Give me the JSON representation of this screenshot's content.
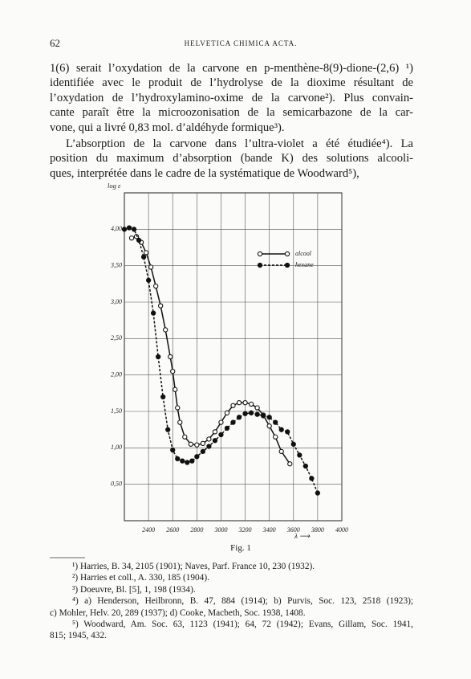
{
  "header": {
    "page_number": "62",
    "running_title": "HELVETICA CHIMICA ACTA."
  },
  "paragraphs": [
    {
      "indent": false,
      "lines": [
        "1(6) serait l’oxydation de la carvone en p-menthène-8(9)-dione-(2,6) ¹)",
        "identifiée avec le produit de l’hydrolyse de la dioxime résultant de",
        "l’oxydation de l’hydroxylamino-oxime de la carvone²). Plus convain-",
        "cante paraît être la microozonisation de la semicarbazone de la car-",
        "vone, qui a livré 0,83 mol. d’aldéhyde formique³)."
      ]
    },
    {
      "indent": true,
      "lines": [
        "L’absorption de la carvone dans l’ultra-violet a été étudiée⁴). La",
        "position du maximum d’absorption (bande K) des solutions alcooli-",
        "ques, interprétée dans le cadre de la systématique de Woodward⁵),"
      ]
    }
  ],
  "chart_data": {
    "type": "line",
    "y_label": "log ε",
    "x_label": "λ ⟶",
    "xlim": [
      2200,
      4000
    ],
    "xticks": [
      2400,
      2600,
      2800,
      3000,
      3200,
      3400,
      3600,
      3800,
      4000
    ],
    "ylim": [
      0,
      4.5
    ],
    "yticks": [
      {
        "value": 0.5,
        "label": "0,50"
      },
      {
        "value": 1.0,
        "label": "1,00"
      },
      {
        "value": 1.5,
        "label": "1,50"
      },
      {
        "value": 2.0,
        "label": "2,00"
      },
      {
        "value": 2.5,
        "label": "2,50"
      },
      {
        "value": 3.0,
        "label": "3,00"
      },
      {
        "value": 3.5,
        "label": "3,50"
      },
      {
        "value": 4.0,
        "label": "4,00"
      }
    ],
    "grid": true,
    "legend": "upper right",
    "series": [
      {
        "name": "alcool",
        "color": "#111111",
        "linestyle": "solid",
        "marker": "open",
        "x": [
          2260,
          2300,
          2340,
          2380,
          2420,
          2460,
          2500,
          2540,
          2580,
          2600,
          2620,
          2640,
          2660,
          2700,
          2750,
          2800,
          2850,
          2900,
          2950,
          3000,
          3050,
          3100,
          3150,
          3200,
          3250,
          3300,
          3350,
          3400,
          3450,
          3500,
          3570
        ],
        "values": [
          3.88,
          3.9,
          3.82,
          3.68,
          3.48,
          3.22,
          2.95,
          2.62,
          2.25,
          2.05,
          1.8,
          1.55,
          1.35,
          1.15,
          1.05,
          1.04,
          1.06,
          1.12,
          1.22,
          1.35,
          1.48,
          1.58,
          1.62,
          1.62,
          1.6,
          1.55,
          1.45,
          1.3,
          1.15,
          0.95,
          0.78
        ]
      },
      {
        "name": "hexane",
        "color": "#111111",
        "linestyle": "dashed",
        "marker": "filled",
        "x": [
          2200,
          2240,
          2280,
          2320,
          2360,
          2400,
          2440,
          2480,
          2520,
          2560,
          2600,
          2640,
          2680,
          2720,
          2760,
          2800,
          2850,
          2900,
          2950,
          3000,
          3050,
          3100,
          3150,
          3200,
          3250,
          3300,
          3350,
          3400,
          3450,
          3500,
          3550,
          3600,
          3650,
          3700,
          3750,
          3800
        ],
        "values": [
          4.0,
          4.02,
          4.0,
          3.85,
          3.62,
          3.3,
          2.85,
          2.25,
          1.7,
          1.25,
          0.97,
          0.85,
          0.82,
          0.8,
          0.82,
          0.88,
          0.95,
          1.02,
          1.1,
          1.18,
          1.27,
          1.35,
          1.42,
          1.47,
          1.48,
          1.46,
          1.44,
          1.42,
          1.35,
          1.25,
          1.22,
          1.05,
          0.9,
          0.75,
          0.58,
          0.38
        ]
      }
    ]
  },
  "figure_caption": "Fig. 1",
  "footnotes": [
    {
      "lines": [
        "¹) Harries, B. 34, 2105 (1901); Naves, Parf. France 10, 230 (1932)."
      ]
    },
    {
      "lines": [
        "²) Harries et coll., A. 330, 185 (1904)."
      ]
    },
    {
      "lines": [
        "³) Doeuvre, Bl. [5], 1, 198 (1934)."
      ]
    },
    {
      "lines": [
        "⁴) a) Henderson, Heilbronn, B. 47, 884 (1914); b) Purvis, Soc. 123, 2518 (1923);",
        "c) Mohler, Helv. 20, 289 (1937); d) Cooke, Macbeth, Soc. 1938, 1408."
      ]
    },
    {
      "lines": [
        "⁵) Woodward, Am. Soc. 63, 1123 (1941); 64, 72 (1942); Evans, Gillam, Soc. 1941,",
        "815; 1945, 432."
      ]
    }
  ]
}
